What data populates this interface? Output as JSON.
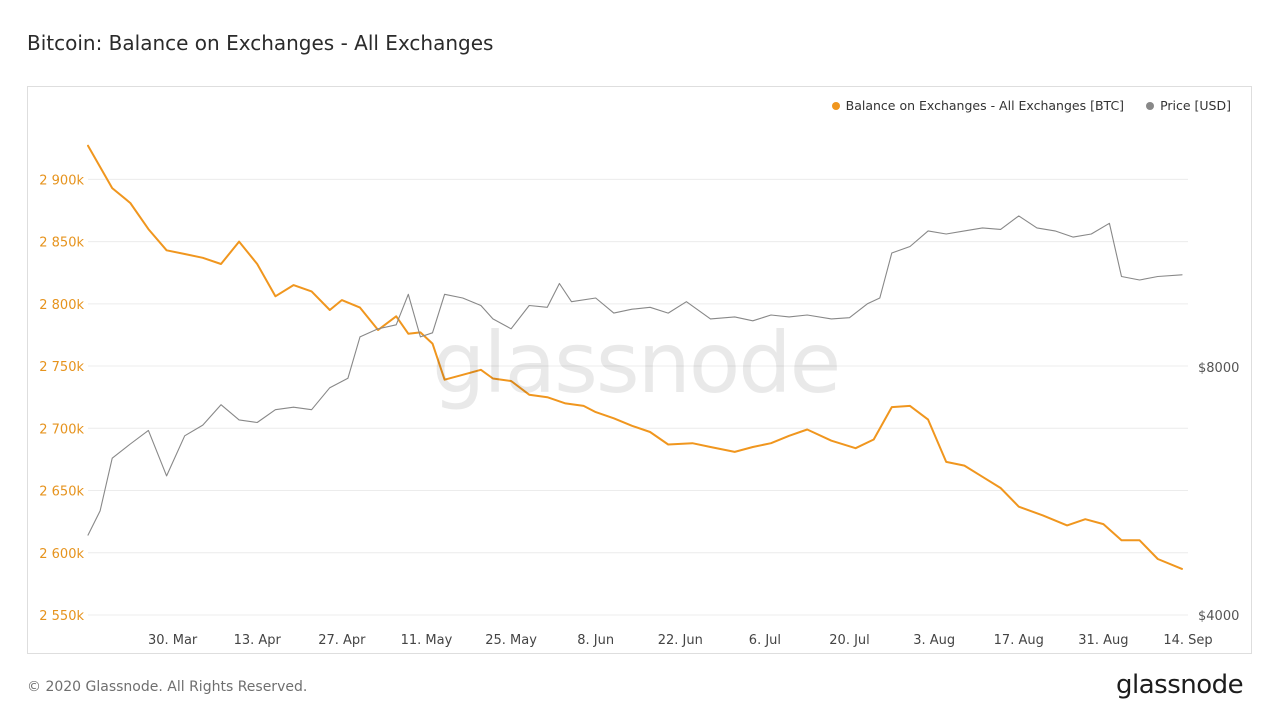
{
  "page": {
    "title": "Bitcoin: Balance on Exchanges - All Exchanges",
    "copyright": "© 2020 Glassnode. All Rights Reserved.",
    "logo": "glassnode",
    "watermark": "glassnode"
  },
  "chart_data": {
    "type": "line",
    "title": "Bitcoin: Balance on Exchanges - All Exchanges",
    "xlabel": "",
    "ylabel": "",
    "grid": true,
    "legend_position": "top-right",
    "x_tick_labels": [
      "30. Mar",
      "13. Apr",
      "27. Apr",
      "11. May",
      "25. May",
      "8. Jun",
      "22. Jun",
      "6. Jul",
      "20. Jul",
      "3. Aug",
      "17. Aug",
      "31. Aug",
      "14. Sep"
    ],
    "x_tick_dates": [
      "2020-03-30",
      "2020-04-13",
      "2020-04-27",
      "2020-05-11",
      "2020-05-25",
      "2020-06-08",
      "2020-06-22",
      "2020-07-06",
      "2020-07-20",
      "2020-08-03",
      "2020-08-17",
      "2020-08-31",
      "2020-09-14"
    ],
    "xlim": [
      "2020-03-16",
      "2020-09-14"
    ],
    "y_left": {
      "tick_labels": [
        "2 550k",
        "2 600k",
        "2 650k",
        "2 700k",
        "2 750k",
        "2 800k",
        "2 850k",
        "2 900k"
      ],
      "tick_values": [
        2550000,
        2600000,
        2650000,
        2700000,
        2750000,
        2800000,
        2850000,
        2900000
      ],
      "ylim": [
        2550000,
        2930000
      ],
      "color": "#e6931d"
    },
    "y_right": {
      "tick_labels": [
        "$4000",
        "$8000"
      ],
      "tick_values": [
        4000,
        8000
      ],
      "scale": "log",
      "ylim": [
        4000,
        15000
      ]
    },
    "series": [
      {
        "name": "Balance on Exchanges - All Exchanges [BTC]",
        "axis": "left",
        "color": "#f0961e",
        "points": [
          [
            "2020-03-16",
            2927000
          ],
          [
            "2020-03-20",
            2893000
          ],
          [
            "2020-03-23",
            2881000
          ],
          [
            "2020-03-26",
            2860000
          ],
          [
            "2020-03-29",
            2843000
          ],
          [
            "2020-04-01",
            2840000
          ],
          [
            "2020-04-04",
            2837000
          ],
          [
            "2020-04-07",
            2832000
          ],
          [
            "2020-04-10",
            2850000
          ],
          [
            "2020-04-13",
            2832000
          ],
          [
            "2020-04-16",
            2806000
          ],
          [
            "2020-04-19",
            2815000
          ],
          [
            "2020-04-22",
            2810000
          ],
          [
            "2020-04-25",
            2795000
          ],
          [
            "2020-04-27",
            2803000
          ],
          [
            "2020-04-30",
            2797000
          ],
          [
            "2020-05-03",
            2779000
          ],
          [
            "2020-05-06",
            2790000
          ],
          [
            "2020-05-08",
            2776000
          ],
          [
            "2020-05-10",
            2777000
          ],
          [
            "2020-05-12",
            2768000
          ],
          [
            "2020-05-14",
            2739000
          ],
          [
            "2020-05-17",
            2743000
          ],
          [
            "2020-05-20",
            2747000
          ],
          [
            "2020-05-22",
            2740000
          ],
          [
            "2020-05-25",
            2738000
          ],
          [
            "2020-05-28",
            2727000
          ],
          [
            "2020-05-31",
            2725000
          ],
          [
            "2020-06-03",
            2720000
          ],
          [
            "2020-06-06",
            2718000
          ],
          [
            "2020-06-08",
            2713000
          ],
          [
            "2020-06-11",
            2708000
          ],
          [
            "2020-06-14",
            2702000
          ],
          [
            "2020-06-17",
            2697000
          ],
          [
            "2020-06-20",
            2687000
          ],
          [
            "2020-06-24",
            2688000
          ],
          [
            "2020-06-27",
            2685000
          ],
          [
            "2020-07-01",
            2681000
          ],
          [
            "2020-07-04",
            2685000
          ],
          [
            "2020-07-07",
            2688000
          ],
          [
            "2020-07-10",
            2694000
          ],
          [
            "2020-07-13",
            2699000
          ],
          [
            "2020-07-17",
            2690000
          ],
          [
            "2020-07-21",
            2684000
          ],
          [
            "2020-07-24",
            2691000
          ],
          [
            "2020-07-27",
            2717000
          ],
          [
            "2020-07-30",
            2718000
          ],
          [
            "2020-08-02",
            2707000
          ],
          [
            "2020-08-05",
            2673000
          ],
          [
            "2020-08-08",
            2670000
          ],
          [
            "2020-08-11",
            2661000
          ],
          [
            "2020-08-14",
            2652000
          ],
          [
            "2020-08-17",
            2637000
          ],
          [
            "2020-08-21",
            2630000
          ],
          [
            "2020-08-25",
            2622000
          ],
          [
            "2020-08-28",
            2627000
          ],
          [
            "2020-08-31",
            2623000
          ],
          [
            "2020-09-03",
            2610000
          ],
          [
            "2020-09-06",
            2610000
          ],
          [
            "2020-09-09",
            2595000
          ],
          [
            "2020-09-13",
            2587000
          ]
        ]
      },
      {
        "name": "Price [USD]",
        "axis": "right",
        "color": "#888888",
        "points": [
          [
            "2020-03-16",
            5000
          ],
          [
            "2020-03-18",
            5350
          ],
          [
            "2020-03-20",
            6200
          ],
          [
            "2020-03-23",
            6450
          ],
          [
            "2020-03-26",
            6700
          ],
          [
            "2020-03-29",
            5900
          ],
          [
            "2020-04-01",
            6600
          ],
          [
            "2020-04-04",
            6800
          ],
          [
            "2020-04-07",
            7200
          ],
          [
            "2020-04-10",
            6900
          ],
          [
            "2020-04-13",
            6850
          ],
          [
            "2020-04-16",
            7100
          ],
          [
            "2020-04-19",
            7150
          ],
          [
            "2020-04-22",
            7100
          ],
          [
            "2020-04-25",
            7550
          ],
          [
            "2020-04-28",
            7750
          ],
          [
            "2020-04-30",
            8700
          ],
          [
            "2020-05-03",
            8900
          ],
          [
            "2020-05-06",
            9000
          ],
          [
            "2020-05-08",
            9800
          ],
          [
            "2020-05-10",
            8700
          ],
          [
            "2020-05-12",
            8800
          ],
          [
            "2020-05-14",
            9800
          ],
          [
            "2020-05-17",
            9700
          ],
          [
            "2020-05-20",
            9500
          ],
          [
            "2020-05-22",
            9150
          ],
          [
            "2020-05-25",
            8900
          ],
          [
            "2020-05-28",
            9500
          ],
          [
            "2020-05-31",
            9450
          ],
          [
            "2020-06-02",
            10100
          ],
          [
            "2020-06-04",
            9600
          ],
          [
            "2020-06-08",
            9700
          ],
          [
            "2020-06-11",
            9300
          ],
          [
            "2020-06-14",
            9400
          ],
          [
            "2020-06-17",
            9450
          ],
          [
            "2020-06-20",
            9300
          ],
          [
            "2020-06-23",
            9600
          ],
          [
            "2020-06-27",
            9150
          ],
          [
            "2020-07-01",
            9200
          ],
          [
            "2020-07-04",
            9100
          ],
          [
            "2020-07-07",
            9250
          ],
          [
            "2020-07-10",
            9200
          ],
          [
            "2020-07-13",
            9250
          ],
          [
            "2020-07-17",
            9150
          ],
          [
            "2020-07-20",
            9180
          ],
          [
            "2020-07-23",
            9550
          ],
          [
            "2020-07-25",
            9700
          ],
          [
            "2020-07-27",
            11000
          ],
          [
            "2020-07-30",
            11200
          ],
          [
            "2020-08-02",
            11700
          ],
          [
            "2020-08-05",
            11600
          ],
          [
            "2020-08-08",
            11700
          ],
          [
            "2020-08-11",
            11800
          ],
          [
            "2020-08-14",
            11750
          ],
          [
            "2020-08-17",
            12200
          ],
          [
            "2020-08-20",
            11800
          ],
          [
            "2020-08-23",
            11700
          ],
          [
            "2020-08-26",
            11500
          ],
          [
            "2020-08-29",
            11600
          ],
          [
            "2020-09-01",
            11950
          ],
          [
            "2020-09-03",
            10300
          ],
          [
            "2020-09-06",
            10200
          ],
          [
            "2020-09-09",
            10300
          ],
          [
            "2020-09-13",
            10350
          ]
        ]
      }
    ]
  }
}
